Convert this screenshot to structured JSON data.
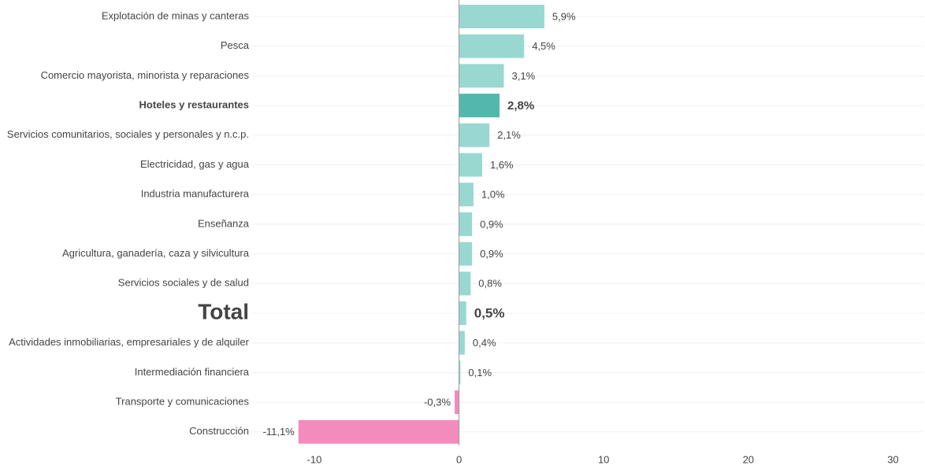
{
  "chart_data": {
    "type": "hbar",
    "categories": [
      "Explotación de minas y canteras",
      "Pesca",
      "Comercio mayorista, minorista y reparaciones",
      "Hoteles y restaurantes",
      "Servicios comunitarios, sociales y personales y n.c.p.",
      "Electricidad, gas y agua",
      "Industria manufacturera",
      "Enseñanza",
      "Agricultura, ganadería, caza y silvicultura",
      "Servicios sociales y de salud",
      "Total",
      "Actividades inmobiliarias, empresariales y de alquiler",
      "Intermediación financiera",
      "Transporte y comunicaciones",
      "Construcción"
    ],
    "values": [
      5.9,
      4.5,
      3.1,
      2.8,
      2.1,
      1.6,
      1.0,
      0.9,
      0.9,
      0.8,
      0.5,
      0.4,
      0.1,
      -0.3,
      -11.1
    ],
    "value_labels": [
      "5,9%",
      "4,5%",
      "3,1%",
      "2,8%",
      "2,1%",
      "1,6%",
      "1,0%",
      "0,9%",
      "0,9%",
      "0,8%",
      "0,5%",
      "0,4%",
      "0,1%",
      "-0,3%",
      "-11,1%"
    ],
    "colors": [
      "#98d8d1",
      "#98d8d1",
      "#98d8d1",
      "#52b8ad",
      "#98d8d1",
      "#98d8d1",
      "#98d8d1",
      "#98d8d1",
      "#98d8d1",
      "#98d8d1",
      "#98d8d1",
      "#98d8d1",
      "#98d8d1",
      "#f48bbd",
      "#f48bbd"
    ],
    "highlight_index": 3,
    "highlight_color": "#9683c6",
    "total_index": 10,
    "xlim": [
      -14.3,
      32.1
    ],
    "xticks": [
      -10,
      0,
      10,
      20,
      30
    ]
  }
}
